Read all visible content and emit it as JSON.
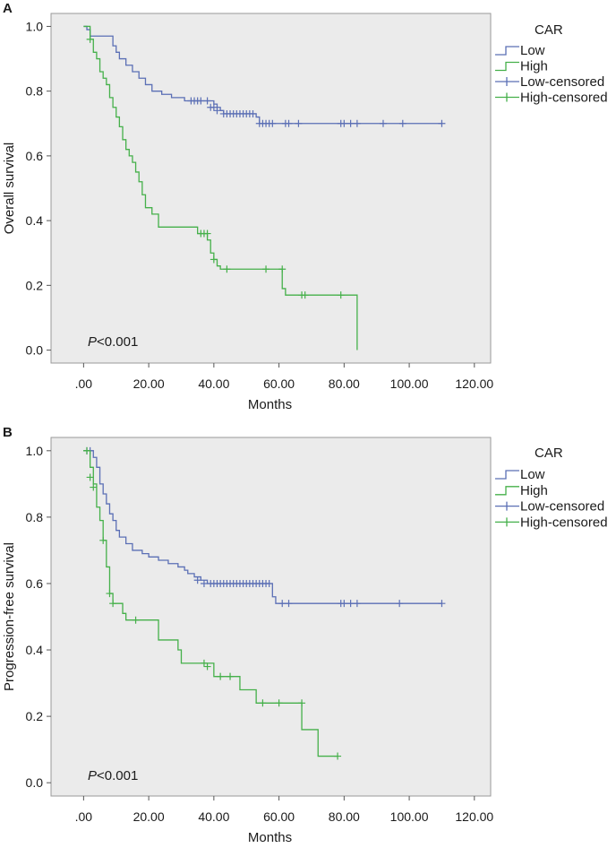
{
  "colors": {
    "low": "#5b6fb5",
    "high": "#45b04a",
    "plot_bg": "#ebebeb",
    "frame": "#9a9a9a",
    "text": "#1a1a1a"
  },
  "chart_data": [
    {
      "type": "line",
      "panel_label": "A",
      "ylabel": "Overall survival",
      "xlabel": "Months",
      "annotation": {
        "p_italic": "P",
        "p_rest": "<0.001"
      },
      "legend": {
        "title": "CAR",
        "entries": [
          "Low",
          "High",
          "Low-censored",
          "High-censored"
        ],
        "placement": "right"
      },
      "xlim": [
        -10,
        125
      ],
      "ylim": [
        -0.04,
        1.04
      ],
      "xticks": [
        0,
        20,
        40,
        60,
        80,
        100,
        120
      ],
      "xtick_labels": [
        ".00",
        "20.00",
        "40.00",
        "60.00",
        "80.00",
        "100.00",
        "120.00"
      ],
      "yticks": [
        0,
        0.2,
        0.4,
        0.6,
        0.8,
        1.0
      ],
      "ytick_labels": [
        "0.0",
        "0.2",
        "0.4",
        "0.6",
        "0.8",
        "1.0"
      ],
      "series": [
        {
          "name": "Low",
          "color_key": "low",
          "steps": [
            [
              0,
              1.0
            ],
            [
              1,
              0.99
            ],
            [
              2,
              0.97
            ],
            [
              9,
              0.94
            ],
            [
              10,
              0.92
            ],
            [
              11,
              0.9
            ],
            [
              13,
              0.88
            ],
            [
              15,
              0.86
            ],
            [
              17,
              0.84
            ],
            [
              19,
              0.82
            ],
            [
              21,
              0.8
            ],
            [
              24,
              0.79
            ],
            [
              27,
              0.78
            ],
            [
              31,
              0.77
            ],
            [
              40,
              0.76
            ],
            [
              41,
              0.75
            ],
            [
              42,
              0.74
            ],
            [
              43,
              0.73
            ],
            [
              53,
              0.72
            ],
            [
              54,
              0.7
            ],
            [
              110,
              0.7
            ]
          ],
          "censored": [
            [
              33,
              0.77
            ],
            [
              34,
              0.77
            ],
            [
              35,
              0.77
            ],
            [
              36,
              0.77
            ],
            [
              38,
              0.77
            ],
            [
              39,
              0.75
            ],
            [
              40,
              0.75
            ],
            [
              41,
              0.74
            ],
            [
              43,
              0.73
            ],
            [
              44,
              0.73
            ],
            [
              45,
              0.73
            ],
            [
              46,
              0.73
            ],
            [
              47,
              0.73
            ],
            [
              48,
              0.73
            ],
            [
              49,
              0.73
            ],
            [
              50,
              0.73
            ],
            [
              51,
              0.73
            ],
            [
              52,
              0.73
            ],
            [
              54,
              0.7
            ],
            [
              55,
              0.7
            ],
            [
              56,
              0.7
            ],
            [
              57,
              0.7
            ],
            [
              58,
              0.7
            ],
            [
              62,
              0.7
            ],
            [
              63,
              0.7
            ],
            [
              66,
              0.7
            ],
            [
              79,
              0.7
            ],
            [
              80,
              0.7
            ],
            [
              82,
              0.7
            ],
            [
              84,
              0.7
            ],
            [
              92,
              0.7
            ],
            [
              98,
              0.7
            ],
            [
              110,
              0.7
            ]
          ]
        },
        {
          "name": "High",
          "color_key": "high",
          "steps": [
            [
              0,
              1.0
            ],
            [
              2,
              0.96
            ],
            [
              3,
              0.92
            ],
            [
              4,
              0.9
            ],
            [
              5,
              0.86
            ],
            [
              6,
              0.84
            ],
            [
              7,
              0.82
            ],
            [
              8,
              0.78
            ],
            [
              9,
              0.75
            ],
            [
              10,
              0.72
            ],
            [
              11,
              0.69
            ],
            [
              12,
              0.65
            ],
            [
              13,
              0.62
            ],
            [
              14,
              0.6
            ],
            [
              15,
              0.58
            ],
            [
              16,
              0.55
            ],
            [
              17,
              0.52
            ],
            [
              18,
              0.48
            ],
            [
              19,
              0.44
            ],
            [
              21,
              0.42
            ],
            [
              23,
              0.38
            ],
            [
              35,
              0.36
            ],
            [
              38,
              0.34
            ],
            [
              39,
              0.3
            ],
            [
              40,
              0.28
            ],
            [
              41,
              0.26
            ],
            [
              42,
              0.25
            ],
            [
              61,
              0.19
            ],
            [
              62,
              0.17
            ],
            [
              84,
              0.0
            ]
          ],
          "censored": [
            [
              2,
              0.96
            ],
            [
              36,
              0.36
            ],
            [
              37,
              0.36
            ],
            [
              38,
              0.36
            ],
            [
              40,
              0.28
            ],
            [
              44,
              0.25
            ],
            [
              56,
              0.25
            ],
            [
              61,
              0.25
            ],
            [
              67,
              0.17
            ],
            [
              68,
              0.17
            ],
            [
              79,
              0.17
            ]
          ]
        }
      ]
    },
    {
      "type": "line",
      "panel_label": "B",
      "ylabel": "Progression-free survival",
      "xlabel": "Months",
      "annotation": {
        "p_italic": "P",
        "p_rest": "<0.001"
      },
      "legend": {
        "title": "CAR",
        "entries": [
          "Low",
          "High",
          "Low-censored",
          "High-censored"
        ],
        "placement": "right"
      },
      "xlim": [
        -10,
        125
      ],
      "ylim": [
        -0.04,
        1.04
      ],
      "xticks": [
        0,
        20,
        40,
        60,
        80,
        100,
        120
      ],
      "xtick_labels": [
        ".00",
        "20.00",
        "40.00",
        "60.00",
        "80.00",
        "100.00",
        "120.00"
      ],
      "yticks": [
        0,
        0.2,
        0.4,
        0.6,
        0.8,
        1.0
      ],
      "ytick_labels": [
        "0.0",
        "0.2",
        "0.4",
        "0.6",
        "0.8",
        "1.0"
      ],
      "series": [
        {
          "name": "Low",
          "color_key": "low",
          "steps": [
            [
              0,
              1.0
            ],
            [
              3,
              0.98
            ],
            [
              4,
              0.95
            ],
            [
              5,
              0.9
            ],
            [
              6,
              0.87
            ],
            [
              7,
              0.84
            ],
            [
              8,
              0.81
            ],
            [
              9,
              0.79
            ],
            [
              10,
              0.76
            ],
            [
              11,
              0.74
            ],
            [
              13,
              0.72
            ],
            [
              15,
              0.7
            ],
            [
              18,
              0.69
            ],
            [
              20,
              0.68
            ],
            [
              23,
              0.67
            ],
            [
              26,
              0.66
            ],
            [
              29,
              0.65
            ],
            [
              31,
              0.64
            ],
            [
              32,
              0.63
            ],
            [
              34,
              0.62
            ],
            [
              36,
              0.61
            ],
            [
              38,
              0.6
            ],
            [
              58,
              0.56
            ],
            [
              59,
              0.54
            ],
            [
              110,
              0.54
            ]
          ],
          "censored": [
            [
              1,
              1.0
            ],
            [
              2,
              1.0
            ],
            [
              35,
              0.61
            ],
            [
              37,
              0.6
            ],
            [
              39,
              0.6
            ],
            [
              40,
              0.6
            ],
            [
              41,
              0.6
            ],
            [
              42,
              0.6
            ],
            [
              43,
              0.6
            ],
            [
              44,
              0.6
            ],
            [
              45,
              0.6
            ],
            [
              46,
              0.6
            ],
            [
              47,
              0.6
            ],
            [
              48,
              0.6
            ],
            [
              49,
              0.6
            ],
            [
              50,
              0.6
            ],
            [
              51,
              0.6
            ],
            [
              52,
              0.6
            ],
            [
              53,
              0.6
            ],
            [
              54,
              0.6
            ],
            [
              55,
              0.6
            ],
            [
              56,
              0.6
            ],
            [
              57,
              0.6
            ],
            [
              61,
              0.54
            ],
            [
              63,
              0.54
            ],
            [
              79,
              0.54
            ],
            [
              80,
              0.54
            ],
            [
              82,
              0.54
            ],
            [
              84,
              0.54
            ],
            [
              97,
              0.54
            ],
            [
              110,
              0.54
            ]
          ]
        },
        {
          "name": "High",
          "color_key": "high",
          "steps": [
            [
              0,
              1.0
            ],
            [
              2,
              0.95
            ],
            [
              3,
              0.9
            ],
            [
              4,
              0.83
            ],
            [
              5,
              0.79
            ],
            [
              6,
              0.73
            ],
            [
              7,
              0.65
            ],
            [
              8,
              0.57
            ],
            [
              9,
              0.54
            ],
            [
              12,
              0.51
            ],
            [
              13,
              0.49
            ],
            [
              23,
              0.43
            ],
            [
              29,
              0.4
            ],
            [
              30,
              0.36
            ],
            [
              40,
              0.32
            ],
            [
              48,
              0.28
            ],
            [
              53,
              0.24
            ],
            [
              67,
              0.16
            ],
            [
              72,
              0.08
            ],
            [
              78,
              0.08
            ]
          ],
          "censored": [
            [
              1,
              1.0
            ],
            [
              2,
              0.92
            ],
            [
              3,
              0.89
            ],
            [
              6,
              0.73
            ],
            [
              8,
              0.57
            ],
            [
              9,
              0.54
            ],
            [
              16,
              0.49
            ],
            [
              37,
              0.36
            ],
            [
              38,
              0.35
            ],
            [
              42,
              0.32
            ],
            [
              45,
              0.32
            ],
            [
              55,
              0.24
            ],
            [
              60,
              0.24
            ],
            [
              67,
              0.24
            ],
            [
              78,
              0.08
            ]
          ]
        }
      ]
    }
  ]
}
